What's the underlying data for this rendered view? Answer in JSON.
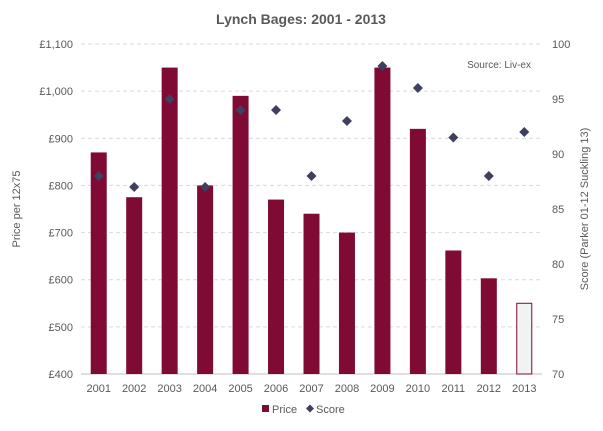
{
  "chart_data": {
    "type": "bar",
    "title": "Lynch Bages: 2001 - 2013",
    "source": "Source: Liv-ex",
    "categories": [
      "2001",
      "2002",
      "2003",
      "2004",
      "2005",
      "2006",
      "2007",
      "2008",
      "2009",
      "2010",
      "2011",
      "2012",
      "2013"
    ],
    "series": [
      {
        "name": "Price",
        "type": "bar",
        "axis": "left",
        "color": "#7f0a33",
        "values": [
          870,
          775,
          1050,
          800,
          990,
          770,
          740,
          700,
          1050,
          920,
          662,
          603,
          550
        ],
        "highlight": {
          "index": 12,
          "fill": "#f2f2f2",
          "stroke": "#7f0a33"
        }
      },
      {
        "name": "Score",
        "type": "scatter",
        "axis": "right",
        "color": "#3f3f5f",
        "values": [
          88,
          87,
          95,
          87,
          94,
          94,
          88,
          93,
          98,
          96,
          91.5,
          88,
          92
        ]
      }
    ],
    "left_axis": {
      "label": "Price per 12x75",
      "min": 400,
      "max": 1100,
      "step": 100,
      "ticks": [
        "£400",
        "£500",
        "£600",
        "£700",
        "£800",
        "£900",
        "£1,000",
        "£1,100"
      ]
    },
    "right_axis": {
      "label": "Score (Parker 01-12  Suckling 13)",
      "min": 70,
      "max": 100,
      "step": 5,
      "ticks": [
        "70",
        "75",
        "80",
        "85",
        "90",
        "95",
        "100"
      ]
    },
    "grid": true,
    "legend": {
      "position": "bottom",
      "items": [
        "Price",
        "Score"
      ]
    }
  }
}
